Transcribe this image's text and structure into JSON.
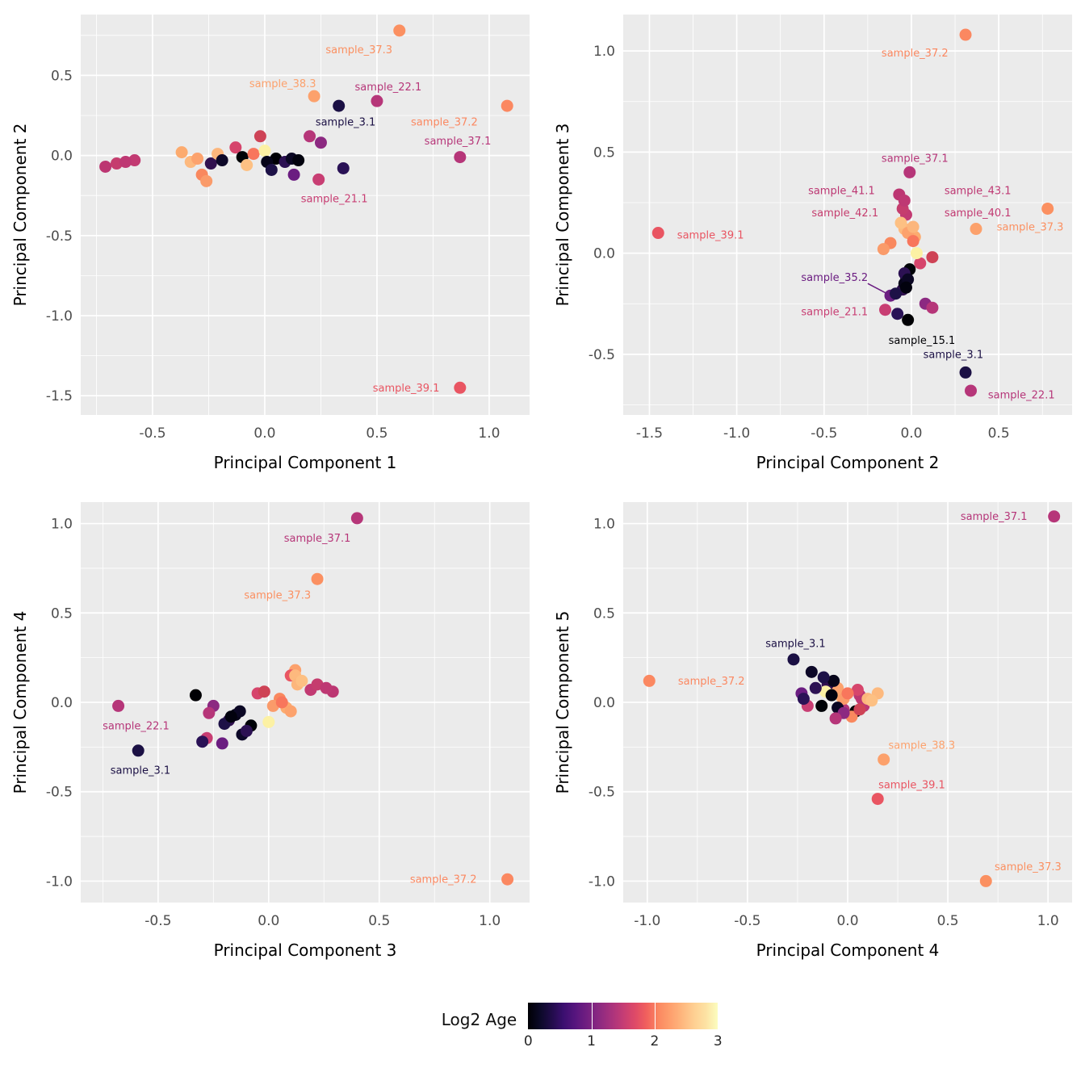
{
  "figure": {
    "panel_background": "#EBEBEB",
    "grid_color": "#FFFFFF",
    "tick_label_color": "#4D4D4D",
    "axis_title_color": "#000000",
    "point_radius": 7.5
  },
  "legend": {
    "title": "Log2 Age",
    "tick_values": [
      0,
      1,
      2,
      3
    ],
    "tick_labels": [
      "0",
      "1",
      "2",
      "3"
    ],
    "range": [
      0,
      3
    ],
    "gradient": [
      "#000004",
      "#0b0927",
      "#210c4a",
      "#3b0f70",
      "#57157e",
      "#721f81",
      "#8c2981",
      "#a8327d",
      "#c43c75",
      "#de4968",
      "#f1605d",
      "#fb8861",
      "#fe9f6d",
      "#feb77e",
      "#fecf92",
      "#fde2a3",
      "#fcfdbf"
    ]
  },
  "points": [
    {
      "name": "sample_37.1",
      "color": "#b63679",
      "pc1": 0.87,
      "pc2": -0.01,
      "pc3": 0.4,
      "pc4": 1.03,
      "pc5": 1.04
    },
    {
      "name": "sample_37.2",
      "color": "#fb8861",
      "pc1": 1.08,
      "pc2": 0.31,
      "pc3": 1.08,
      "pc4": -0.99,
      "pc5": 0.12
    },
    {
      "name": "sample_37.3",
      "color": "#fb9061",
      "pc1": 0.6,
      "pc2": 0.78,
      "pc3": 0.22,
      "pc4": 0.69,
      "pc5": -1.0
    },
    {
      "name": "sample_38.3",
      "color": "#fca16c",
      "pc1": 0.22,
      "pc2": 0.37,
      "pc3": 0.12,
      "pc4": 0.18,
      "pc5": -0.32
    },
    {
      "name": "sample_39.1",
      "color": "#e95562",
      "pc1": 0.87,
      "pc2": -1.45,
      "pc3": 0.1,
      "pc4": 0.15,
      "pc5": -0.54
    },
    {
      "name": "sample_22.1",
      "color": "#b63679",
      "pc1": 0.5,
      "pc2": 0.34,
      "pc3": -0.68,
      "pc4": -0.02,
      "pc5": -0.04
    },
    {
      "name": "sample_21.1",
      "color": "#c83e73",
      "pc1": 0.24,
      "pc2": -0.15,
      "pc3": -0.28,
      "pc4": -0.2,
      "pc5": -0.02
    },
    {
      "name": "sample_3.1",
      "color": "#1b1044",
      "pc1": 0.33,
      "pc2": 0.31,
      "pc3": -0.59,
      "pc4": -0.27,
      "pc5": 0.24
    },
    {
      "name": "sample_35.2",
      "color": "#6b1d81",
      "pc1": 0.13,
      "pc2": -0.12,
      "pc3": -0.21,
      "pc4": -0.23,
      "pc5": 0.05
    },
    {
      "name": "sample_15.1",
      "color": "#000004",
      "pc1": 0.05,
      "pc2": -0.02,
      "pc3": -0.33,
      "pc4": 0.04,
      "pc5": -0.05
    },
    {
      "name": "sample_40.1",
      "color": "#c23a72",
      "pc1": -0.58,
      "pc2": -0.03,
      "pc3": 0.19,
      "pc4": 0.07,
      "pc5": 0.02
    },
    {
      "name": "sample_41.1",
      "color": "#bc3672",
      "pc1": -0.71,
      "pc2": -0.07,
      "pc3": 0.29,
      "pc4": 0.06,
      "pc5": 0.04
    },
    {
      "name": "sample_42.1",
      "color": "#c53d6e",
      "pc1": -0.66,
      "pc2": -0.05,
      "pc3": 0.22,
      "pc4": 0.1,
      "pc5": 0.01
    },
    {
      "name": "sample_43.1",
      "color": "#be3873",
      "pc1": -0.62,
      "pc2": -0.04,
      "pc3": 0.26,
      "pc4": 0.08,
      "pc5": -0.02
    },
    {
      "color": "#fcab6f",
      "pc1": -0.37,
      "pc2": 0.02,
      "pc3": 0.08,
      "pc4": -0.03,
      "pc5": 0.03
    },
    {
      "color": "#fdb97e",
      "pc1": -0.33,
      "pc2": -0.04,
      "pc3": 0.12,
      "pc4": 0.15,
      "pc5": 0.05
    },
    {
      "color": "#fca26d",
      "pc1": -0.3,
      "pc2": -0.02,
      "pc3": 0.1,
      "pc4": -0.05,
      "pc5": 0.08
    },
    {
      "color": "#f9885e",
      "pc1": -0.28,
      "pc2": -0.12,
      "pc3": 0.05,
      "pc4": 0.02,
      "pc5": -0.08
    },
    {
      "color": "#fa9b6a",
      "pc1": -0.26,
      "pc2": -0.16,
      "pc3": 0.02,
      "pc4": -0.02,
      "pc5": 0.02
    },
    {
      "color": "#31114f",
      "pc1": -0.24,
      "pc2": -0.05,
      "pc3": -0.18,
      "pc4": -0.1,
      "pc5": 0.1
    },
    {
      "color": "#fcb67c",
      "pc1": -0.21,
      "pc2": 0.01,
      "pc3": 0.13,
      "pc4": 0.1,
      "pc5": 0.02
    },
    {
      "color": "#0d0828",
      "pc1": -0.19,
      "pc2": -0.03,
      "pc3": -0.12,
      "pc4": -0.18,
      "pc5": 0.17
    },
    {
      "color": "#d6456c",
      "pc1": -0.13,
      "pc2": 0.05,
      "pc3": -0.05,
      "pc4": 0.05,
      "pc5": 0.07
    },
    {
      "color": "#000308",
      "pc1": -0.1,
      "pc2": -0.01,
      "pc3": -0.08,
      "pc4": -0.13,
      "pc5": -0.02
    },
    {
      "color": "#fdc083",
      "pc1": -0.08,
      "pc2": -0.06,
      "pc3": 0.15,
      "pc4": 0.12,
      "pc5": 0.01
    },
    {
      "color": "#f8765c",
      "pc1": -0.05,
      "pc2": 0.01,
      "pc3": 0.06,
      "pc4": 0.0,
      "pc5": 0.05
    },
    {
      "color": "#ce4356",
      "pc1": -0.02,
      "pc2": 0.12,
      "pc3": -0.02,
      "pc4": 0.06,
      "pc5": -0.04
    },
    {
      "color": "#fcf1a4",
      "pc1": 0.0,
      "pc2": 0.03,
      "pc3": 0.0,
      "pc4": -0.11,
      "pc5": 0.06
    },
    {
      "color": "#07051a",
      "pc1": 0.01,
      "pc2": -0.04,
      "pc3": -0.15,
      "pc4": -0.07,
      "pc5": 0.12
    },
    {
      "color": "#1d1147",
      "pc1": 0.03,
      "pc2": -0.09,
      "pc3": -0.2,
      "pc4": -0.12,
      "pc5": 0.14
    },
    {
      "color": "#2c1153",
      "pc1": 0.09,
      "pc2": -0.04,
      "pc3": -0.1,
      "pc4": -0.16,
      "pc5": 0.08
    },
    {
      "color": "#0b0724",
      "pc1": 0.12,
      "pc2": -0.02,
      "pc3": -0.13,
      "pc4": -0.05,
      "pc5": -0.03
    },
    {
      "color": "#02020e",
      "pc1": 0.15,
      "pc2": -0.03,
      "pc3": -0.17,
      "pc4": -0.08,
      "pc5": 0.04
    },
    {
      "color": "#8c2981",
      "pc1": 0.25,
      "pc2": 0.08,
      "pc3": -0.25,
      "pc4": -0.02,
      "pc5": -0.06
    },
    {
      "color": "#2a1256",
      "pc1": 0.35,
      "pc2": -0.08,
      "pc3": -0.3,
      "pc4": -0.22,
      "pc5": 0.02
    },
    {
      "color": "#b63679",
      "pc1": 0.2,
      "pc2": 0.12,
      "pc3": -0.27,
      "pc4": -0.06,
      "pc5": -0.09
    }
  ],
  "chart_data": [
    {
      "type": "scatter",
      "xkey": "pc1",
      "ykey": "pc2",
      "xlabel": "Principal Component 1",
      "ylabel": "Principal Component 2",
      "xlim": [
        -0.82,
        1.18
      ],
      "ylim": [
        -1.62,
        0.88
      ],
      "xticks": [
        -0.5,
        0.0,
        0.5,
        1.0
      ],
      "yticks": [
        0.5,
        0.0,
        -0.5,
        -1.0,
        -1.5
      ],
      "grid": true,
      "color_legend": "Log2 Age",
      "labels": [
        {
          "text": "sample_37.3",
          "x": 0.42,
          "y": 0.66,
          "color": "#fb9061"
        },
        {
          "text": "sample_38.3",
          "x": 0.08,
          "y": 0.45,
          "color": "#fca16c"
        },
        {
          "text": "sample_22.1",
          "x": 0.55,
          "y": 0.43,
          "color": "#b63679"
        },
        {
          "text": "sample_3.1",
          "x": 0.36,
          "y": 0.21,
          "color": "#1b1044"
        },
        {
          "text": "sample_37.2",
          "x": 0.8,
          "y": 0.21,
          "color": "#fb8861"
        },
        {
          "text": "sample_37.1",
          "x": 0.86,
          "y": 0.09,
          "color": "#b63679"
        },
        {
          "text": "sample_21.1",
          "x": 0.31,
          "y": -0.27,
          "color": "#c83e73"
        },
        {
          "text": "sample_39.1",
          "x": 0.63,
          "y": -1.45,
          "color": "#e95562"
        }
      ]
    },
    {
      "type": "scatter",
      "xkey": "pc2",
      "ykey": "pc3",
      "xlabel": "Principal Component 2",
      "ylabel": "Principal Component 3",
      "xlim": [
        -1.65,
        0.92
      ],
      "ylim": [
        -0.8,
        1.18
      ],
      "xticks": [
        -1.5,
        -1.0,
        -0.5,
        0.0,
        0.5
      ],
      "yticks": [
        1.0,
        0.5,
        0.0,
        -0.5
      ],
      "grid": true,
      "color_legend": "Log2 Age",
      "labels": [
        {
          "text": "sample_37.2",
          "x": 0.02,
          "y": 0.99,
          "color": "#fb8861"
        },
        {
          "text": "sample_37.1",
          "x": 0.02,
          "y": 0.47,
          "color": "#b63679"
        },
        {
          "text": "sample_41.1",
          "x": -0.4,
          "y": 0.31,
          "color": "#bc3672"
        },
        {
          "text": "sample_43.1",
          "x": 0.38,
          "y": 0.31,
          "color": "#be3873"
        },
        {
          "text": "sample_42.1",
          "x": -0.38,
          "y": 0.2,
          "color": "#c53d6e"
        },
        {
          "text": "sample_40.1",
          "x": 0.38,
          "y": 0.2,
          "color": "#c23a72"
        },
        {
          "text": "sample_37.3",
          "x": 0.68,
          "y": 0.13,
          "color": "#fb9061"
        },
        {
          "text": "sample_39.1",
          "x": -1.15,
          "y": 0.09,
          "color": "#e95562"
        },
        {
          "text": "sample_35.2",
          "x": -0.44,
          "y": -0.12,
          "color": "#6b1d81",
          "segment": {
            "x1": -0.25,
            "y1": -0.15,
            "x2": -0.14,
            "y2": -0.2
          }
        },
        {
          "text": "sample_21.1",
          "x": -0.44,
          "y": -0.29,
          "color": "#c83e73"
        },
        {
          "text": "sample_15.1",
          "x": 0.06,
          "y": -0.43,
          "color": "#000004"
        },
        {
          "text": "sample_3.1",
          "x": 0.24,
          "y": -0.5,
          "color": "#1b1044"
        },
        {
          "text": "sample_22.1",
          "x": 0.63,
          "y": -0.7,
          "color": "#b63679"
        }
      ]
    },
    {
      "type": "scatter",
      "xkey": "pc3",
      "ykey": "pc4",
      "xlabel": "Principal Component 3",
      "ylabel": "Principal Component 4",
      "xlim": [
        -0.85,
        1.18
      ],
      "ylim": [
        -1.12,
        1.12
      ],
      "xticks": [
        -0.5,
        0.0,
        0.5,
        1.0
      ],
      "yticks": [
        1.0,
        0.5,
        0.0,
        -0.5,
        -1.0
      ],
      "grid": true,
      "color_legend": "Log2 Age",
      "labels": [
        {
          "text": "sample_37.1",
          "x": 0.22,
          "y": 0.92,
          "color": "#b63679"
        },
        {
          "text": "sample_37.3",
          "x": 0.04,
          "y": 0.6,
          "color": "#fb9061"
        },
        {
          "text": "sample_22.1",
          "x": -0.6,
          "y": -0.13,
          "color": "#b63679"
        },
        {
          "text": "sample_3.1",
          "x": -0.58,
          "y": -0.38,
          "color": "#1b1044"
        },
        {
          "text": "sample_37.2",
          "x": 0.79,
          "y": -0.99,
          "color": "#fb8861"
        }
      ]
    },
    {
      "type": "scatter",
      "xkey": "pc4",
      "ykey": "pc5",
      "xlabel": "Principal Component 4",
      "ylabel": "Principal Component 5",
      "xlim": [
        -1.12,
        1.12
      ],
      "ylim": [
        -1.12,
        1.12
      ],
      "xticks": [
        -1.0,
        -0.5,
        0.0,
        0.5,
        1.0
      ],
      "yticks": [
        1.0,
        0.5,
        0.0,
        -0.5,
        -1.0
      ],
      "grid": true,
      "color_legend": "Log2 Age",
      "labels": [
        {
          "text": "sample_37.1",
          "x": 0.73,
          "y": 1.04,
          "color": "#b63679"
        },
        {
          "text": "sample_3.1",
          "x": -0.26,
          "y": 0.33,
          "color": "#1b1044"
        },
        {
          "text": "sample_37.2",
          "x": -0.68,
          "y": 0.12,
          "color": "#fb8861"
        },
        {
          "text": "sample_38.3",
          "x": 0.37,
          "y": -0.24,
          "color": "#fca16c"
        },
        {
          "text": "sample_39.1",
          "x": 0.32,
          "y": -0.46,
          "color": "#e95562"
        },
        {
          "text": "sample_37.3",
          "x": 0.9,
          "y": -0.92,
          "color": "#fb9061"
        }
      ]
    }
  ]
}
